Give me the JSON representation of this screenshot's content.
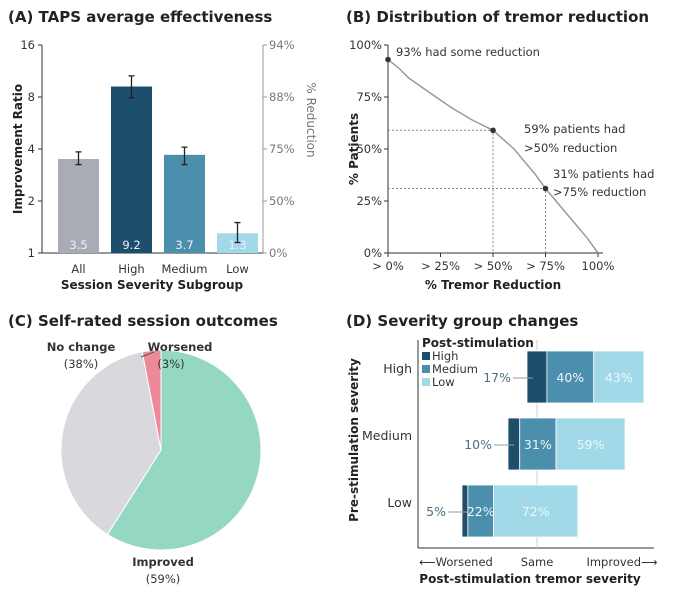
{
  "colors": {
    "all": "#a9adb3",
    "high": "#1d4e6b",
    "medium": "#4b8fac",
    "low": "#a2d9e8",
    "improved": "#94d8c4",
    "no_change": "#d9d9dd",
    "worsened": "#ec8a9a",
    "curve": "#9a9a9a"
  },
  "chart_data": [
    {
      "panel": "(A)",
      "type": "bar",
      "title": "TAPS average effectiveness",
      "categories": [
        "All",
        "High",
        "Medium",
        "Low"
      ],
      "values": [
        3.5,
        9.2,
        3.7,
        1.3
      ],
      "value_labels": [
        "3.5",
        "9.2",
        "3.7",
        "1.3"
      ],
      "error_low": [
        3.25,
        7.9,
        3.25,
        1.15
      ],
      "error_high": [
        3.85,
        10.6,
        4.1,
        1.5
      ],
      "xlabel": "Session Severity Subgroup",
      "ylabel": "Improvement Ratio",
      "yscale": "log2",
      "ylim": [
        1,
        16
      ],
      "yticks": [
        "1",
        "2",
        "4",
        "8",
        "16"
      ],
      "y2label": "% Reduction",
      "y2ticks": [
        "0%",
        "50%",
        "75%",
        "88%",
        "94%"
      ]
    },
    {
      "panel": "(B)",
      "type": "line",
      "title": "Distribution of tremor reduction",
      "x": [
        0,
        5,
        10,
        20,
        30,
        40,
        50,
        60,
        70,
        75,
        80,
        90,
        95,
        100
      ],
      "y": [
        93,
        89,
        84,
        77,
        70,
        64,
        59,
        50,
        38,
        31,
        25,
        13,
        7,
        0
      ],
      "xlabel": "% Tremor Reduction",
      "ylabel": "% Patients",
      "xlim": [
        0,
        100
      ],
      "ylim": [
        0,
        100
      ],
      "xticks": [
        "> 0%",
        "> 25%",
        "> 50%",
        "> 75%",
        "100%"
      ],
      "yticks": [
        "0%",
        "25%",
        "50%",
        "75%",
        "100%"
      ],
      "annotations": [
        "93% had some reduction",
        "59% patients had",
        ">50% reduction",
        "31% patients had",
        ">75% reduction"
      ]
    },
    {
      "panel": "(C)",
      "type": "pie",
      "title": "Self-rated session outcomes",
      "slices": [
        {
          "label": "Improved",
          "value": 59,
          "pct": "(59%)"
        },
        {
          "label": "No change",
          "value": 38,
          "pct": "(38%)"
        },
        {
          "label": "Worsened",
          "value": 3,
          "pct": "(3%)"
        }
      ]
    },
    {
      "panel": "(D)",
      "type": "bar",
      "orientation": "horizontal",
      "stacked": true,
      "title": "Severity group changes",
      "categories": [
        "High",
        "Medium",
        "Low"
      ],
      "series": [
        {
          "name": "High",
          "values": [
            17,
            10,
            5
          ]
        },
        {
          "name": "Medium",
          "values": [
            40,
            31,
            22
          ]
        },
        {
          "name": "Low",
          "values": [
            43,
            59,
            72
          ]
        }
      ],
      "labels": [
        [
          "17%",
          "40%",
          "43%"
        ],
        [
          "10%",
          "31%",
          "59%"
        ],
        [
          "5%",
          "22%",
          "72%"
        ]
      ],
      "legend_title": "Post-stimulation",
      "ylabel": "Pre-stimulation severity",
      "xlabel": "Post-stimulation tremor severity",
      "xticks": [
        "⟵Worsened",
        "Same",
        "Improved⟶"
      ]
    }
  ]
}
